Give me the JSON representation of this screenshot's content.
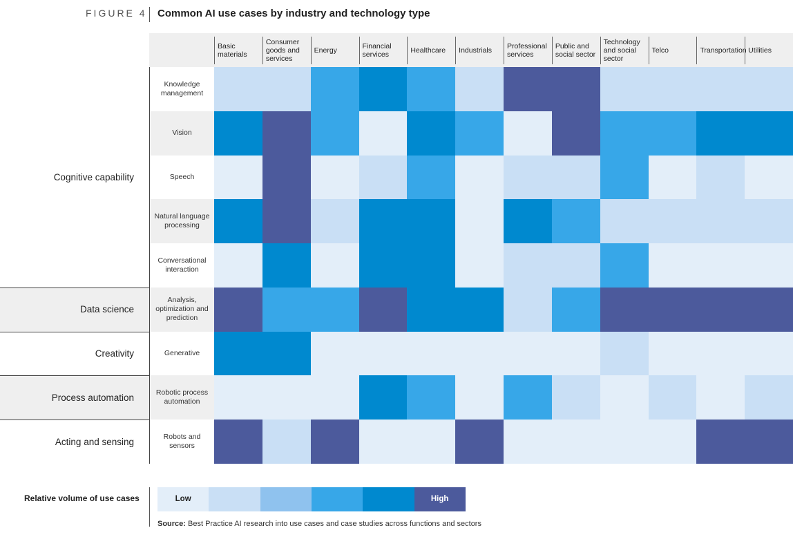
{
  "chart_data": {
    "type": "heatmap",
    "figure_label": "FIGURE 4",
    "title": "Common AI use cases by industry and technology type",
    "categories": [
      "Basic materials",
      "Consumer goods and services",
      "Energy",
      "Financial services",
      "Healthcare",
      "Industrials",
      "Professional services",
      "Public and social sector",
      "Technology and social sector",
      "Telco",
      "Transportation",
      "Utilities"
    ],
    "groups": [
      {
        "name": "Cognitive capability",
        "rows": [
          {
            "label": "Knowledge management",
            "values": [
              2,
              2,
              4,
              5,
              4,
              2,
              6,
              6,
              2,
              2,
              2,
              2
            ]
          },
          {
            "label": "Vision",
            "values": [
              5,
              6,
              4,
              1,
              5,
              4,
              1,
              6,
              4,
              4,
              5,
              5
            ]
          },
          {
            "label": "Speech",
            "values": [
              1,
              6,
              1,
              2,
              4,
              1,
              2,
              2,
              4,
              1,
              2,
              1
            ]
          },
          {
            "label": "Natural language processing",
            "values": [
              5,
              6,
              2,
              5,
              5,
              1,
              5,
              4,
              2,
              2,
              2,
              2
            ]
          },
          {
            "label": "Conversational interaction",
            "values": [
              1,
              5,
              1,
              5,
              5,
              1,
              2,
              2,
              4,
              1,
              1,
              1
            ]
          }
        ]
      },
      {
        "name": "Data science",
        "rows": [
          {
            "label": "Analysis, optimization and prediction",
            "values": [
              6,
              4,
              4,
              6,
              5,
              5,
              2,
              4,
              6,
              6,
              6,
              6
            ]
          }
        ]
      },
      {
        "name": "Creativity",
        "rows": [
          {
            "label": "Generative",
            "values": [
              5,
              5,
              1,
              1,
              1,
              1,
              1,
              1,
              2,
              1,
              1,
              1
            ]
          }
        ]
      },
      {
        "name": "Process automation",
        "rows": [
          {
            "label": "Robotic process automation",
            "values": [
              1,
              1,
              1,
              5,
              4,
              1,
              4,
              2,
              1,
              2,
              1,
              2
            ]
          }
        ]
      },
      {
        "name": "Acting and sensing",
        "rows": [
          {
            "label": "Robots and sensors",
            "values": [
              6,
              2,
              6,
              1,
              1,
              6,
              1,
              1,
              1,
              1,
              6,
              6
            ]
          }
        ]
      }
    ],
    "colors": [
      "#e3eef9",
      "#c9dff5",
      "#8fc2ee",
      "#37a7e8",
      "#0089cf",
      "#4c5a9c"
    ],
    "legend": {
      "title": "Relative volume of use cases",
      "levels": [
        1,
        2,
        3,
        4,
        5,
        6
      ],
      "low_label": "Low",
      "high_label": "High"
    },
    "source": {
      "label": "Source:",
      "text": "Best Practice AI research into use cases and case studies across functions and sectors"
    }
  }
}
